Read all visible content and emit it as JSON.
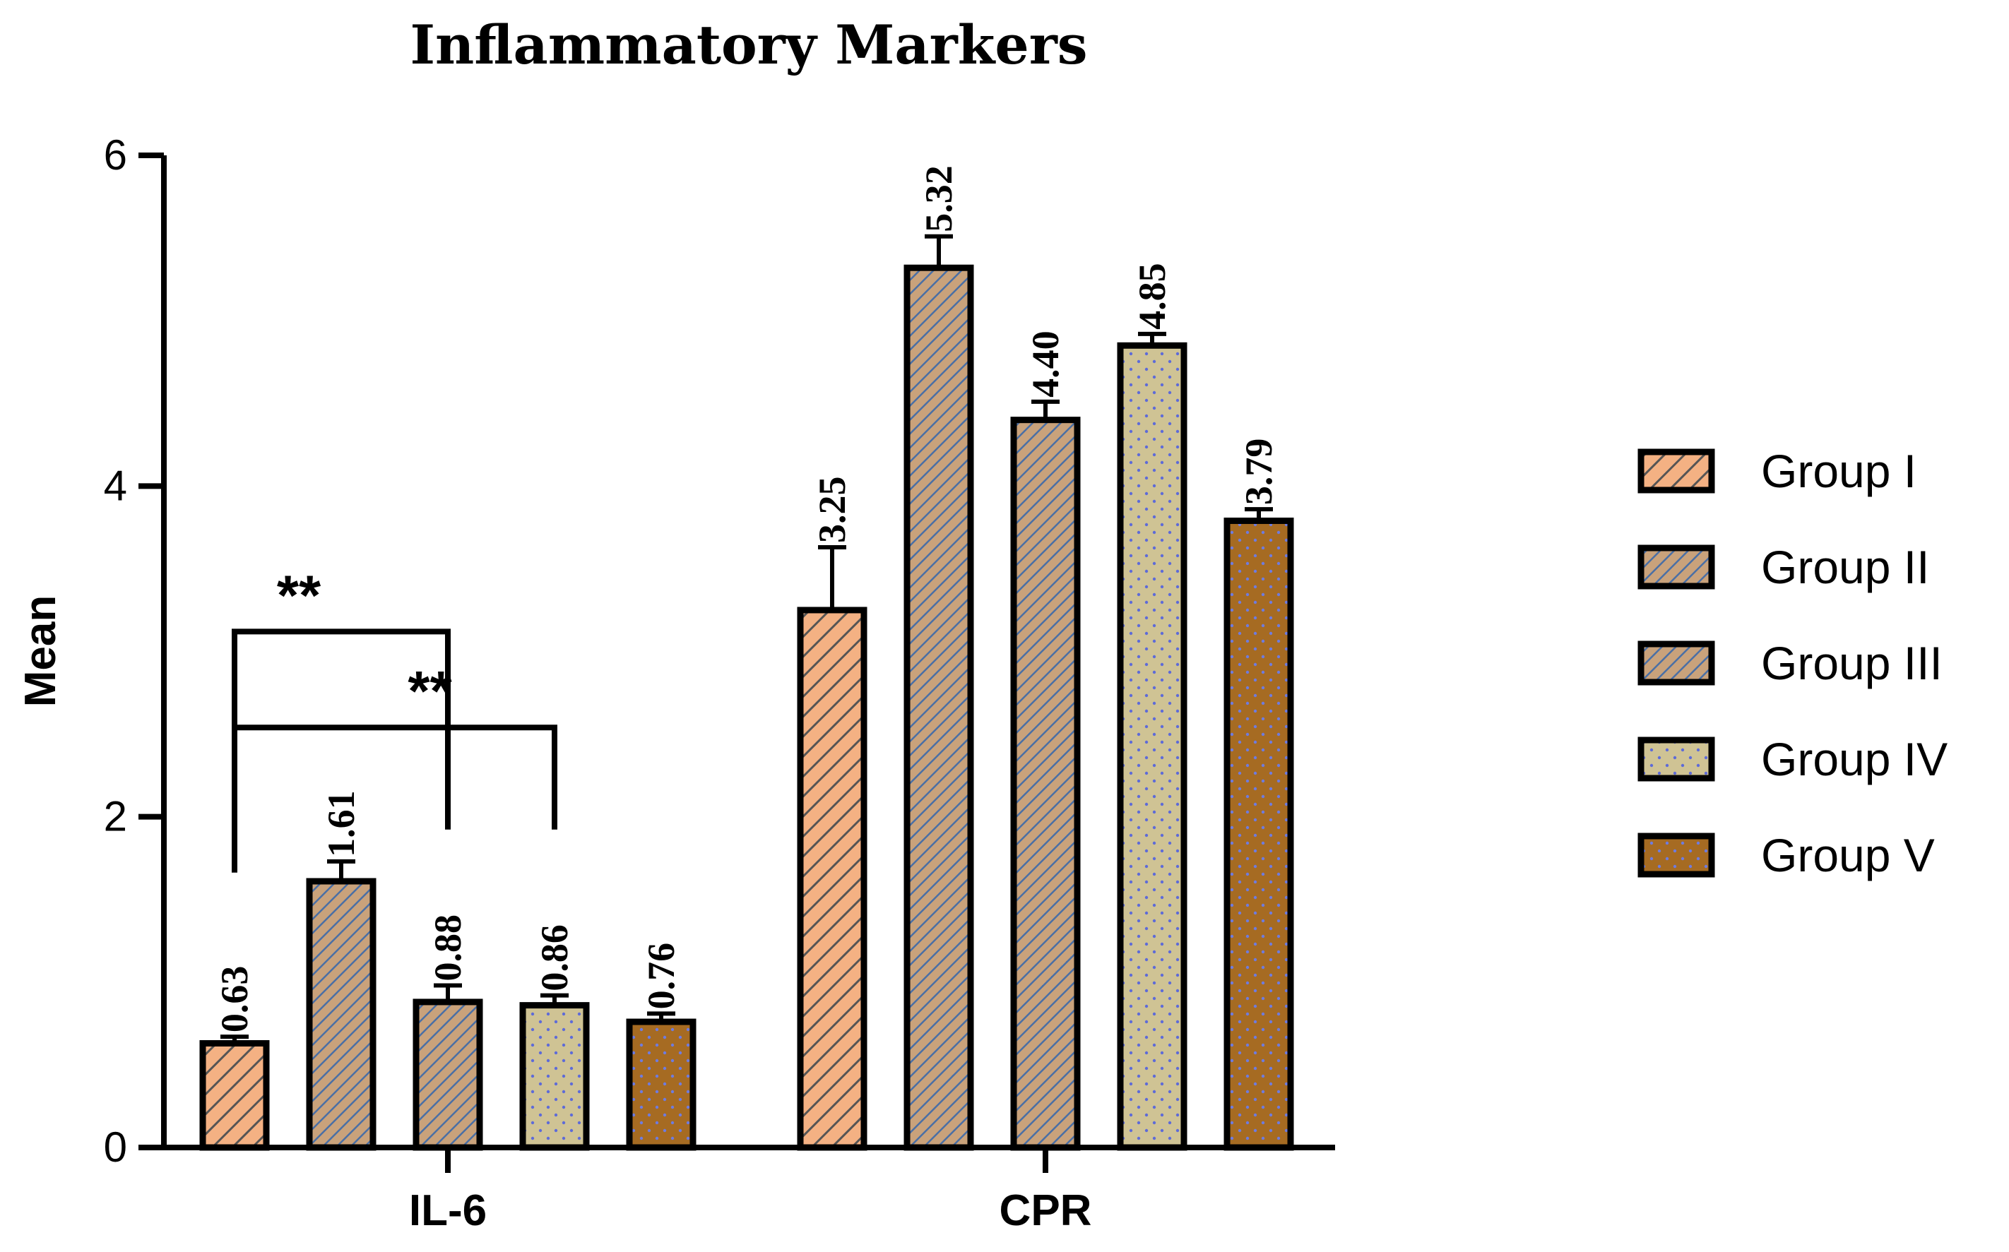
{
  "chart_data": {
    "type": "bar",
    "title": "Inflammatory Markers",
    "xlabel": "",
    "ylabel": "Mean",
    "ylim": [
      0,
      6
    ],
    "yticks": [
      0,
      2,
      4,
      6
    ],
    "categories": [
      "IL-6",
      "CPR"
    ],
    "series": [
      {
        "name": "Group I",
        "values": [
          0.63,
          3.25
        ],
        "errors": [
          0.04,
          0.38
        ],
        "labels": [
          "0.63",
          "3.25"
        ],
        "color": "#F4B183",
        "pattern": "diag-wide"
      },
      {
        "name": "Group II",
        "values": [
          1.61,
          5.32
        ],
        "errors": [
          0.12,
          0.19
        ],
        "labels": [
          "1.61",
          "5.32"
        ],
        "color": "#C9A27B",
        "pattern": "diag-blue"
      },
      {
        "name": "Group III",
        "values": [
          0.88,
          4.4
        ],
        "errors": [
          0.1,
          0.11
        ],
        "labels": [
          "0.88",
          "4.40"
        ],
        "color": "#C9A27B",
        "pattern": "diag-blue"
      },
      {
        "name": "Group IV",
        "values": [
          0.86,
          4.85
        ],
        "errors": [
          0.06,
          0.07
        ],
        "labels": [
          "0.86",
          "4.85"
        ],
        "color": "#CFC394",
        "pattern": "dots"
      },
      {
        "name": "Group V",
        "values": [
          0.76,
          3.79
        ],
        "errors": [
          0.05,
          0.07
        ],
        "labels": [
          "0.76",
          "3.79"
        ],
        "color": "#A66B22",
        "pattern": "dots"
      }
    ],
    "significance": [
      {
        "from": "Group I",
        "to": "Group III",
        "category": "IL-6",
        "label": "**",
        "level": 3.12
      },
      {
        "from": "Group I",
        "to": "Group IV",
        "category": "IL-6",
        "label": "**",
        "level": 2.54
      }
    ],
    "legend": {
      "position": "right"
    },
    "grid": false
  }
}
